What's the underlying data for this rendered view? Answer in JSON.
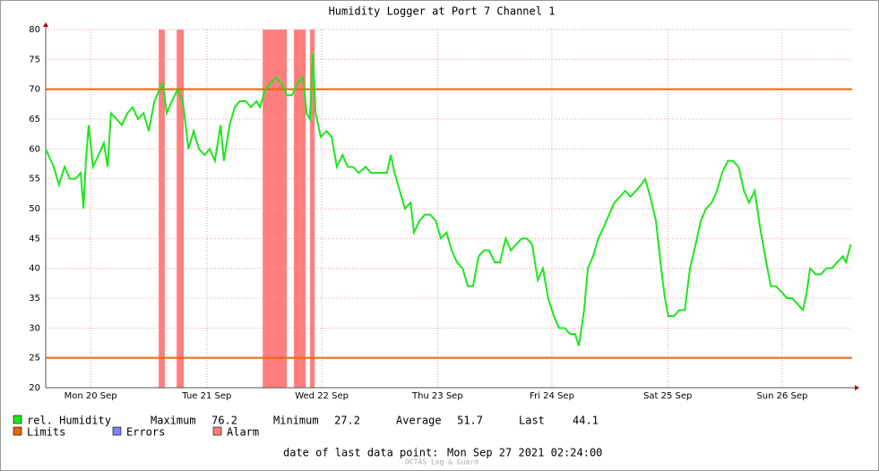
{
  "chart_data": {
    "type": "line",
    "title": "Humidity Logger at Port 7 Channel 1",
    "xlim": [
      0,
      170.6
    ],
    "xticks": [
      {
        "value": 9.5,
        "label": "Mon 20 Sep"
      },
      {
        "value": 34.1,
        "label": "Tue 21 Sep"
      },
      {
        "value": 58.4,
        "label": "Wed 22 Sep"
      },
      {
        "value": 82.9,
        "label": "Thu 23 Sep"
      },
      {
        "value": 107.1,
        "label": "Fri 24 Sep"
      },
      {
        "value": 131.6,
        "label": "Sat 25 Sep"
      },
      {
        "value": 155.8,
        "label": "Sun 26 Sep"
      }
    ],
    "ylim": [
      20,
      80
    ],
    "yticks": [
      20,
      25,
      30,
      35,
      40,
      45,
      50,
      55,
      60,
      65,
      70,
      75,
      80
    ],
    "grid": true,
    "x": [
      0,
      1.7,
      2.8,
      4.0,
      5.1,
      6.3,
      7.4,
      8.0,
      8.5,
      9.1,
      10.0,
      11.2,
      12.3,
      13.1,
      13.8,
      15.0,
      16.1,
      17.3,
      18.4,
      19.5,
      20.7,
      21.8,
      23.0,
      24.1,
      24.8,
      25.6,
      26.7,
      27.9,
      29.0,
      30.2,
      31.3,
      32.4,
      33.6,
      34.7,
      35.8,
      37.0,
      37.7,
      38.9,
      40.0,
      41.1,
      42.3,
      43.4,
      44.6,
      45.3,
      46.5,
      47.6,
      48.7,
      49.9,
      51.0,
      52.1,
      53.3,
      54.4,
      55.2,
      55.9,
      56.5,
      57.1,
      58.2,
      59.4,
      60.5,
      61.6,
      62.8,
      63.9,
      65.0,
      66.2,
      67.7,
      68.8,
      70.0,
      71.1,
      72.2,
      73.0,
      73.8,
      74.9,
      76.0,
      77.2,
      77.9,
      79.1,
      80.2,
      81.3,
      82.5,
      83.6,
      84.8,
      85.9,
      87.0,
      88.2,
      89.3,
      90.4,
      91.6,
      92.7,
      93.8,
      95.0,
      96.1,
      97.3,
      98.4,
      99.5,
      100.7,
      101.8,
      102.9,
      104.1,
      105.2,
      106.3,
      107.5,
      108.6,
      109.8,
      110.9,
      112.0,
      112.8,
      113.9,
      114.7,
      115.8,
      116.9,
      118.1,
      119.2,
      120.3,
      121.5,
      122.6,
      123.7,
      124.9,
      126.0,
      126.8,
      127.9,
      129.1,
      130.2,
      131.0,
      131.7,
      132.9,
      134.0,
      135.2,
      136.3,
      137.5,
      138.6,
      139.7,
      140.9,
      142.0,
      143.1,
      144.3,
      145.4,
      146.6,
      147.7,
      148.8,
      150.0,
      151.1,
      152.2,
      153.4,
      154.5,
      155.7,
      156.8,
      157.9,
      159.1,
      160.2,
      161.0,
      161.7,
      162.9,
      164.0,
      165.1,
      166.3,
      167.4,
      168.6,
      169.3,
      170.3
    ],
    "series": [
      {
        "name": "rel. Humidity",
        "color": "#1ee61e",
        "values": [
          60,
          57,
          54,
          57,
          55,
          55,
          56,
          50,
          58,
          64,
          57,
          59,
          61,
          57,
          66,
          65,
          64,
          66,
          67,
          65,
          66,
          63,
          68,
          70,
          71,
          66,
          68,
          70,
          68,
          60,
          63,
          60,
          59,
          60,
          58,
          64,
          58,
          64,
          67,
          68,
          68,
          67,
          68,
          67,
          70,
          71,
          72,
          71,
          69,
          69,
          71,
          72,
          66,
          65,
          76,
          66,
          62,
          63,
          62,
          57,
          59,
          57,
          57,
          56,
          57,
          56,
          56,
          56,
          56,
          59,
          56,
          53,
          50,
          51,
          46,
          48,
          49,
          49,
          48,
          45,
          46,
          43,
          41,
          40,
          37,
          37,
          42,
          43,
          43,
          41,
          41,
          45,
          43,
          44,
          45,
          45,
          44,
          38,
          40,
          35,
          32,
          30,
          30,
          29,
          29,
          27,
          33,
          40,
          42,
          45,
          47,
          49,
          51,
          52,
          53,
          52,
          53,
          54,
          55,
          52,
          48,
          40,
          35,
          32,
          32,
          33,
          33,
          40,
          44,
          48,
          50,
          51,
          53,
          56,
          58,
          58,
          57,
          53,
          51,
          53,
          47,
          42,
          37,
          37,
          36,
          35,
          35,
          34,
          33,
          36,
          40,
          39,
          39,
          40,
          40,
          41,
          42,
          41,
          44
        ]
      }
    ],
    "limits": {
      "name": "Limits",
      "color": "#e8660c",
      "values": [
        70,
        25
      ]
    },
    "errors": {
      "name": "Errors",
      "color": "#7f7fff"
    },
    "alarm": {
      "name": "Alarm",
      "color": "#ff7f7f",
      "ranges": [
        [
          23.9,
          25.2
        ],
        [
          27.7,
          29.2
        ],
        [
          45.9,
          51.0
        ],
        [
          52.5,
          55.0
        ],
        [
          55.9,
          56.9
        ]
      ]
    },
    "stats": [
      {
        "label": "Maximum",
        "value": 76.2
      },
      {
        "label": "Minimum",
        "value": 27.2
      },
      {
        "label": "Average",
        "value": 51.7
      },
      {
        "label": "Last",
        "value": 44.1
      }
    ],
    "last_point_label": "date of last data point:",
    "last_point": "Mon Sep 27 2021 02:24:00",
    "footer": "OCTAS Log & Guard"
  }
}
